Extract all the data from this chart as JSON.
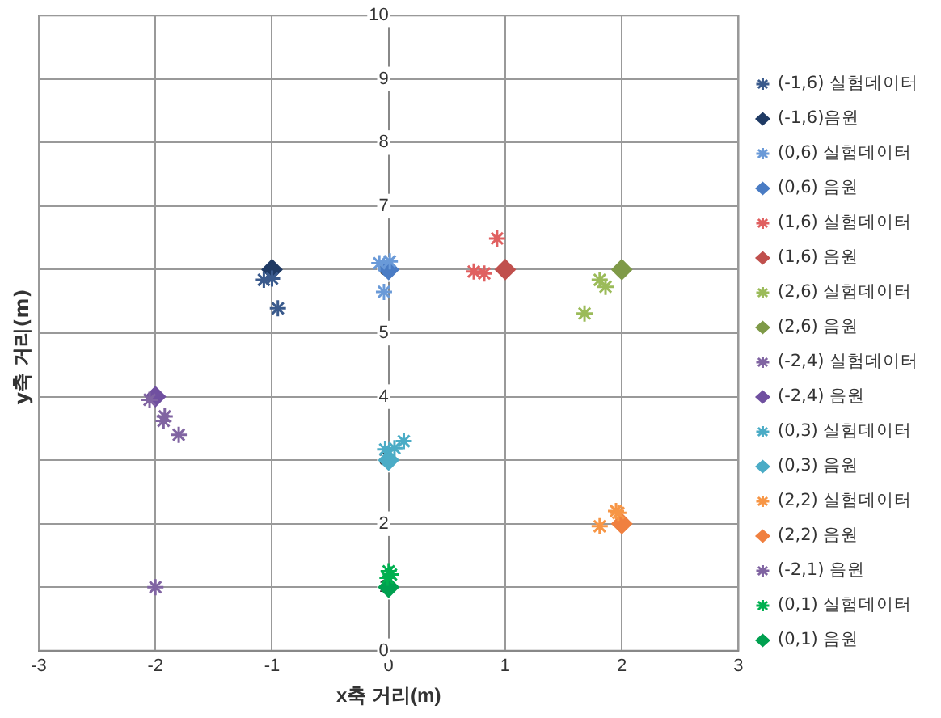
{
  "chart_data": {
    "type": "scatter",
    "xlabel": "x축 거리(m)",
    "ylabel": "y축 거리(m)",
    "xlim": [
      -3,
      3
    ],
    "ylim": [
      0,
      10
    ],
    "xticks": [
      -3,
      -2,
      -1,
      0,
      1,
      2,
      3
    ],
    "yticks": [
      0,
      1,
      2,
      3,
      4,
      5,
      6,
      7,
      8,
      9,
      10
    ],
    "grid": true,
    "legend": "right",
    "series": [
      {
        "name": "(-1,6) 실험데이터",
        "color": "#3a5a8c",
        "marker": "cross",
        "x": [
          -1.07,
          -1.0,
          -0.95
        ],
        "values": [
          5.84,
          5.86,
          5.39
        ]
      },
      {
        "name": "(-1,6)음원",
        "color": "#1f3a64",
        "marker": "diamond",
        "x": [
          -1
        ],
        "values": [
          6
        ]
      },
      {
        "name": "(0,6) 실험데이터",
        "color": "#6a9ad8",
        "marker": "cross",
        "x": [
          -0.08,
          0.01,
          -0.04
        ],
        "values": [
          6.1,
          6.13,
          5.65
        ]
      },
      {
        "name": "(0,6) 음원",
        "color": "#4a7cc4",
        "marker": "diamond",
        "x": [
          0
        ],
        "values": [
          6
        ]
      },
      {
        "name": "(1,6) 실험데이터",
        "color": "#e06060",
        "marker": "cross",
        "x": [
          0.93,
          0.73,
          0.82
        ],
        "values": [
          6.49,
          5.97,
          5.94
        ]
      },
      {
        "name": "(1,6) 음원",
        "color": "#c0504d",
        "marker": "diamond",
        "x": [
          1
        ],
        "values": [
          6
        ]
      },
      {
        "name": "(2,6) 실험데이터",
        "color": "#9bbb59",
        "marker": "cross",
        "x": [
          1.81,
          1.86,
          1.68
        ],
        "values": [
          5.84,
          5.73,
          5.31
        ]
      },
      {
        "name": "(2,6) 음원",
        "color": "#7f9a48",
        "marker": "diamond",
        "x": [
          2
        ],
        "values": [
          6
        ]
      },
      {
        "name": "(-2,4) 실험데이터",
        "color": "#8064a2",
        "marker": "cross",
        "x": [
          -2.05,
          -1.92,
          -1.93,
          -1.8
        ],
        "values": [
          3.95,
          3.69,
          3.62,
          3.4
        ]
      },
      {
        "name": "(-2,4) 음원",
        "color": "#7050a0",
        "marker": "diamond",
        "x": [
          -2
        ],
        "values": [
          4
        ]
      },
      {
        "name": "(0,3) 실험데이터",
        "color": "#4bacc6",
        "marker": "cross",
        "x": [
          -0.03,
          0.05,
          0.13
        ],
        "values": [
          3.17,
          3.19,
          3.3
        ]
      },
      {
        "name": "(0,3) 음원",
        "color": "#4bacc6",
        "marker": "diamond",
        "x": [
          0
        ],
        "values": [
          3
        ]
      },
      {
        "name": "(2,2) 실험데이터",
        "color": "#f79646",
        "marker": "cross",
        "x": [
          1.81,
          1.95,
          1.97
        ],
        "values": [
          1.96,
          2.2,
          2.17
        ]
      },
      {
        "name": "(2,2) 음원",
        "color": "#f08040",
        "marker": "diamond",
        "x": [
          2
        ],
        "values": [
          2
        ]
      },
      {
        "name": "(-2,1) 음원",
        "color": "#8064a2",
        "marker": "cross",
        "x": [
          -2
        ],
        "values": [
          1
        ]
      },
      {
        "name": "(0,1) 실험데이터",
        "color": "#00b050",
        "marker": "cross",
        "x": [
          0,
          0.02,
          -0.01
        ],
        "values": [
          1.25,
          1.2,
          1.15
        ]
      },
      {
        "name": "(0,1) 음원",
        "color": "#00a050",
        "marker": "diamond",
        "x": [
          0
        ],
        "values": [
          1
        ]
      }
    ]
  }
}
